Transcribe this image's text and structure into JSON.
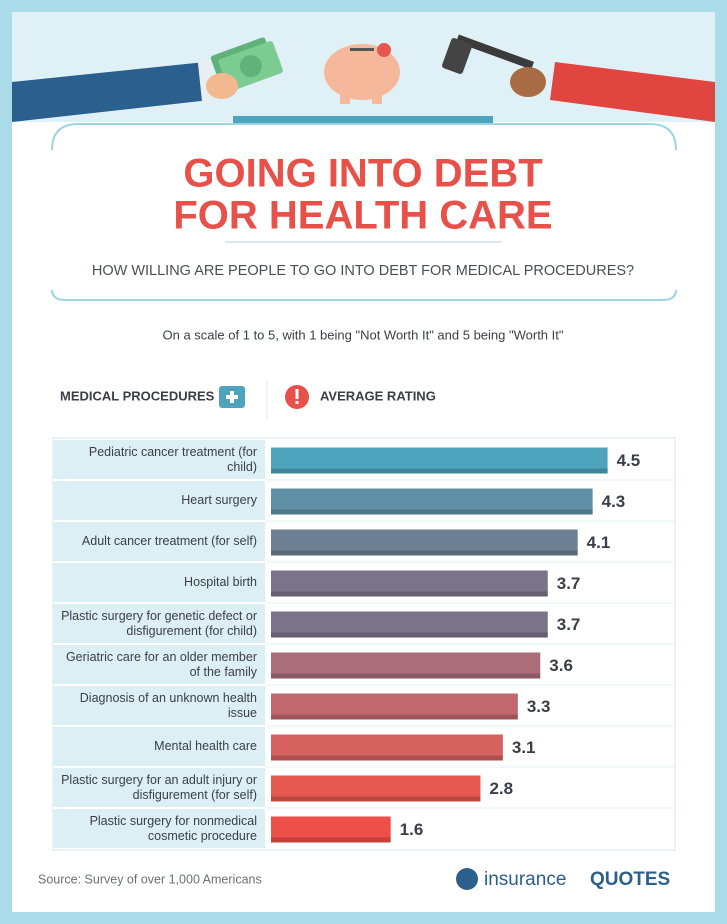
{
  "chart_data": {
    "type": "bar",
    "orientation": "horizontal",
    "title": [
      "GOING INTO DEBT",
      "FOR HEALTH CARE"
    ],
    "subtitle": "HOW WILLING ARE PEOPLE TO GO INTO DEBT FOR MEDICAL PROCEDURES?",
    "note": "On a scale of 1 to 5, with 1 being \"Not Worth It\" and 5 being \"Worth It\"",
    "category_header": "MEDICAL PROCEDURES",
    "value_header": "AVERAGE RATING",
    "categories": [
      "Pediatric cancer treatment (for child)",
      "Heart surgery",
      "Adult cancer treatment (for self)",
      "Hospital birth",
      "Plastic surgery for genetic defect or disfigurement (for child)",
      "Geriatric care for an older member of the family",
      "Diagnosis of an unknown health issue",
      "Mental health care",
      "Plastic surgery for an adult injury or disfigurement (for self)",
      "Plastic surgery for nonmedical cosmetic procedure"
    ],
    "values": [
      4.5,
      4.3,
      4.1,
      3.7,
      3.7,
      3.6,
      3.3,
      3.1,
      2.8,
      1.6
    ],
    "colors": [
      "#4fa4bd",
      "#5f90a6",
      "#6e8093",
      "#7b7389",
      "#7b7389",
      "#aa6e7b",
      "#c1686e",
      "#d5625f",
      "#e4584f",
      "#ee4f48"
    ],
    "xlim": [
      0,
      5
    ],
    "source": "Source: Survey of over 1,000 Americans",
    "logo": [
      "insurance",
      "QUOTES"
    ]
  }
}
